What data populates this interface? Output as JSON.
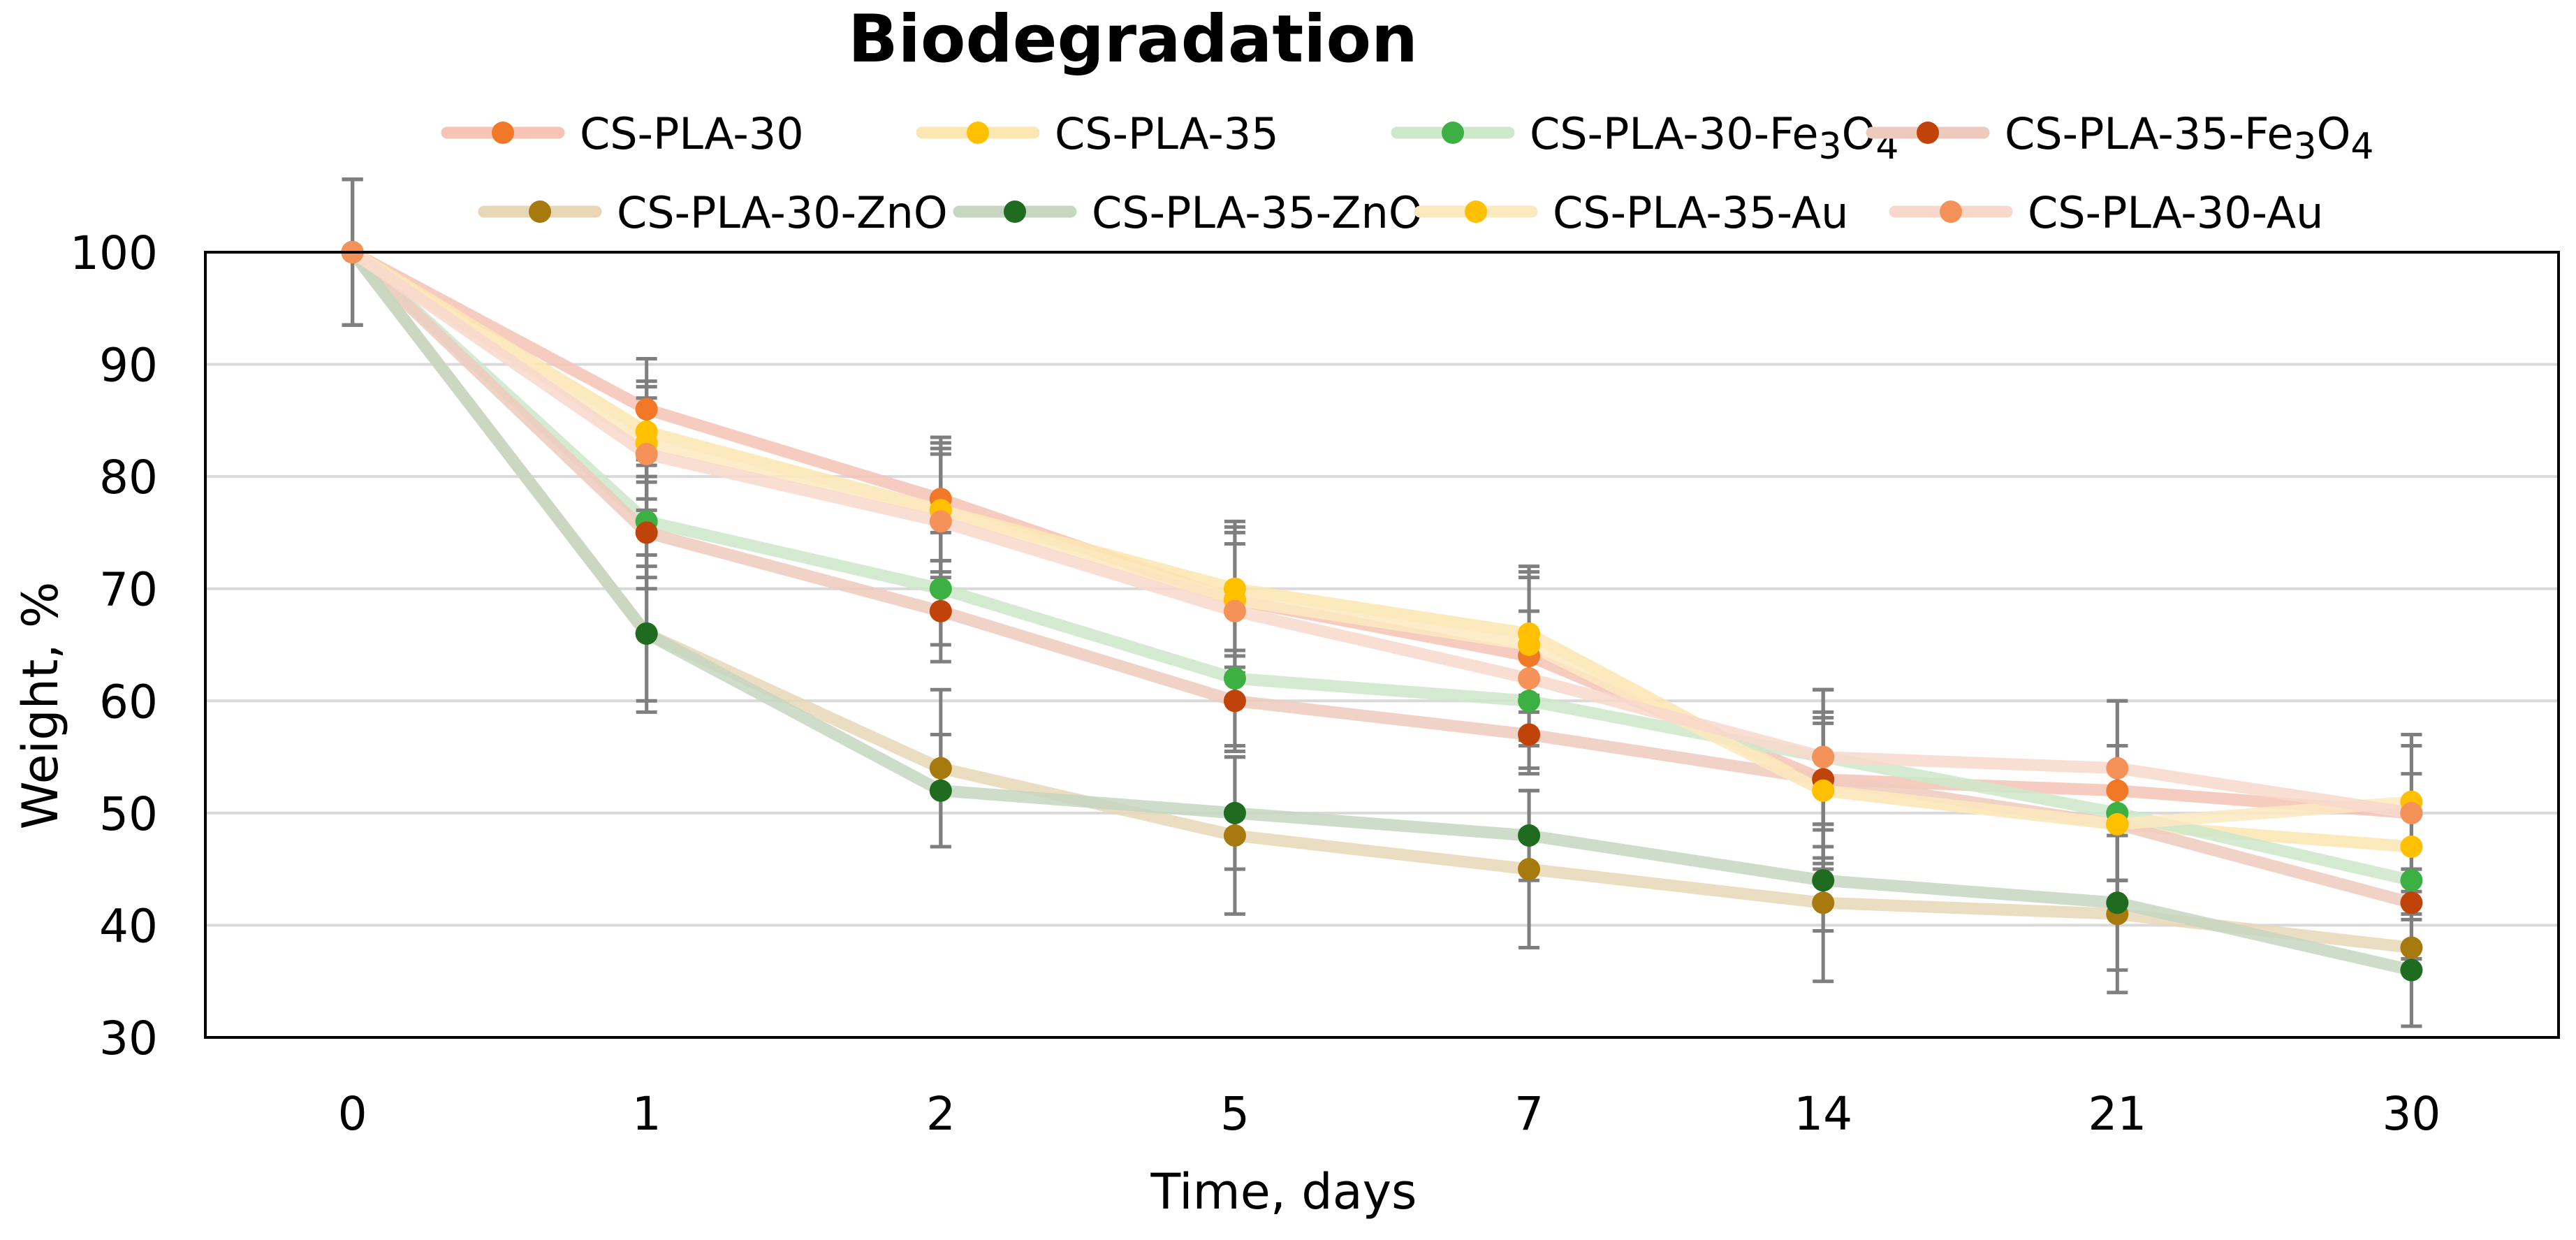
{
  "chart_data": {
    "type": "line",
    "title": "Biodegradation",
    "xlabel": "Time, days",
    "ylabel": "Weight, %",
    "categories": [
      "0",
      "1",
      "2",
      "5",
      "7",
      "14",
      "21",
      "30"
    ],
    "ylim": [
      30,
      100
    ],
    "yticks": [
      30,
      40,
      50,
      60,
      70,
      80,
      90,
      100
    ],
    "grid": true,
    "legend_position": "top",
    "series": [
      {
        "name": "CS-PLA-30",
        "name_parts": [
          {
            "t": "CS-PLA-30"
          }
        ],
        "color": "#F07826",
        "line_color": "#F6C3B5",
        "values": [
          100,
          86,
          78,
          69,
          64,
          53,
          52,
          50
        ],
        "errors": [
          6.5,
          4.5,
          5.5,
          6.5,
          7.5,
          8,
          8,
          7
        ]
      },
      {
        "name": "CS-PLA-35",
        "name_parts": [
          {
            "t": "CS-PLA-35"
          }
        ],
        "color": "#FFC000",
        "line_color": "#FCE6B2",
        "values": [
          100,
          84,
          77,
          70,
          66,
          52,
          49,
          47
        ],
        "errors": [
          6.5,
          4.5,
          5.5,
          6,
          6,
          6.5,
          7,
          6.5
        ]
      },
      {
        "name": "CS-PLA-30-Fe3O4",
        "name_parts": [
          {
            "t": "CS-PLA-30-Fe"
          },
          {
            "t": "3",
            "sub": true
          },
          {
            "t": "O"
          },
          {
            "t": "4",
            "sub": true
          }
        ],
        "color": "#3CB043",
        "line_color": "#CDE8CA",
        "values": [
          100,
          76,
          70,
          62,
          60,
          55,
          50,
          44
        ],
        "errors": [
          6.5,
          5,
          5,
          6,
          6,
          6,
          6,
          7
        ]
      },
      {
        "name": "CS-PLA-35-Fe3O4",
        "name_parts": [
          {
            "t": "CS-PLA-35-Fe"
          },
          {
            "t": "3",
            "sub": true
          },
          {
            "t": "O"
          },
          {
            "t": "4",
            "sub": true
          }
        ],
        "color": "#C0440A",
        "line_color": "#EECABD",
        "values": [
          100,
          75,
          68,
          60,
          57,
          53,
          49,
          42
        ],
        "errors": [
          6.5,
          5,
          4.5,
          4.5,
          3.5,
          6,
          5,
          5
        ]
      },
      {
        "name": "CS-PLA-30-ZnO",
        "name_parts": [
          {
            "t": "CS-PLA-30-ZnO"
          }
        ],
        "color": "#A67A0E",
        "line_color": "#E8D7B6",
        "values": [
          100,
          66,
          54,
          48,
          45,
          42,
          41,
          38
        ],
        "errors": [
          6.5,
          7,
          7,
          7,
          7,
          7,
          7,
          7
        ]
      },
      {
        "name": "CS-PLA-35-ZnO",
        "name_parts": [
          {
            "t": "CS-PLA-35-ZnO"
          }
        ],
        "color": "#1F6B1F",
        "line_color": "#C6D6C1",
        "values": [
          100,
          66,
          52,
          50,
          48,
          44,
          42,
          36
        ],
        "errors": [
          6.5,
          6,
          5,
          5,
          4,
          4.5,
          6,
          5
        ]
      },
      {
        "name": "CS-PLA-35-Au",
        "name_parts": [
          {
            "t": "CS-PLA-35-Au"
          }
        ],
        "color": "#FFC000",
        "line_color": "#FCE9BF",
        "values": [
          100,
          83,
          77,
          69,
          65,
          52,
          49,
          51
        ],
        "errors": [
          6.5,
          5,
          6,
          6,
          6,
          6,
          7,
          6
        ]
      },
      {
        "name": "CS-PLA-30-Au",
        "name_parts": [
          {
            "t": "CS-PLA-30-Au"
          }
        ],
        "color": "#F5925A",
        "line_color": "#F8D8CC",
        "values": [
          100,
          82,
          76,
          68,
          62,
          55,
          54,
          50
        ],
        "errors": [
          6.5,
          5,
          6,
          6,
          6,
          6,
          6,
          6
        ]
      }
    ]
  }
}
